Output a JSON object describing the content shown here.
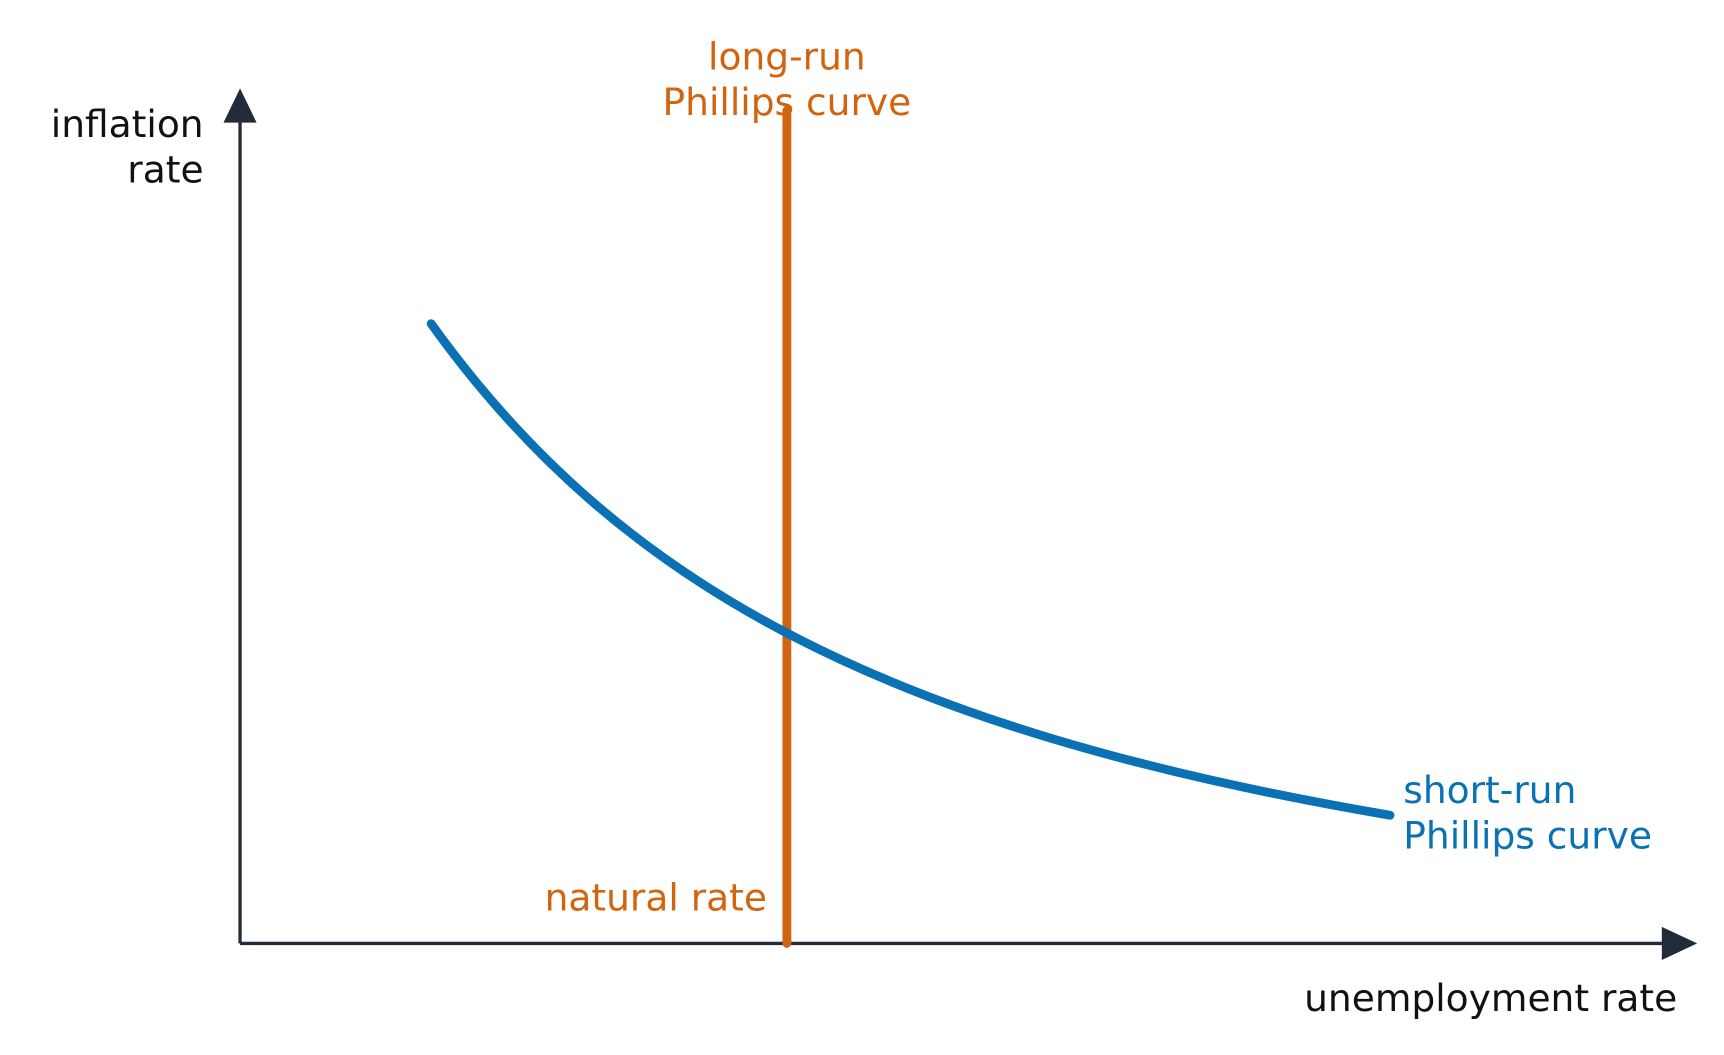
{
  "axes": {
    "y_label": [
      "inflation",
      "rate"
    ],
    "x_label": "unemployment rate"
  },
  "curves": {
    "long_run": {
      "label": [
        "long-run",
        "Phillips curve"
      ],
      "marker": "natural rate"
    },
    "short_run": {
      "label": [
        "short-run",
        "Phillips curve"
      ]
    }
  }
}
